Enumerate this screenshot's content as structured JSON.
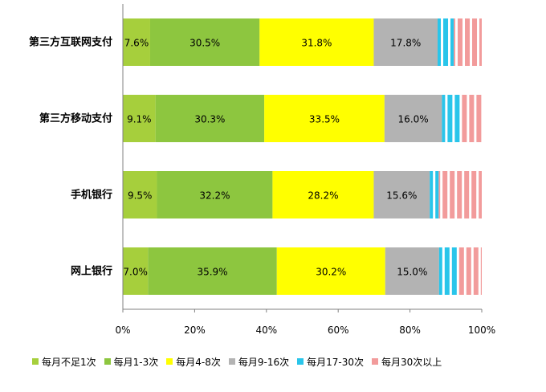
{
  "chart_data": {
    "type": "bar",
    "orientation": "horizontal",
    "stacked": true,
    "percent": true,
    "categories": [
      "第三方互联网支付",
      "第三方移动支付",
      "手机银行",
      "网上银行"
    ],
    "series": [
      {
        "name": "每月不足1次",
        "color": "#a6cf3c",
        "values": [
          7.6,
          9.1,
          9.5,
          7.0
        ]
      },
      {
        "name": "每月1-3次",
        "color": "#8dc63f",
        "values": [
          30.5,
          30.3,
          32.2,
          35.9
        ]
      },
      {
        "name": "每月4-8次",
        "color": "#ffff00",
        "values": [
          31.8,
          33.5,
          28.2,
          30.2
        ]
      },
      {
        "name": "每月9-16次",
        "color": "#b3b3b3",
        "values": [
          17.8,
          16.0,
          15.6,
          15.0
        ]
      },
      {
        "name": "每月17-30次",
        "color": "#29c5ea",
        "values": [
          4.5,
          5.0,
          2.5,
          5.5
        ]
      },
      {
        "name": "每月30次以上",
        "color": "#f29b9b",
        "values": [
          7.8,
          6.1,
          12.0,
          6.4
        ]
      }
    ],
    "value_labels": [
      [
        "7.6%",
        "30.5%",
        "31.8%",
        "17.8%",
        "",
        ""
      ],
      [
        "9.1%",
        "30.3%",
        "33.5%",
        "16.0%",
        "",
        ""
      ],
      [
        "9.5%",
        "32.2%",
        "28.2%",
        "15.6%",
        "",
        ""
      ],
      [
        "7.0%",
        "35.9%",
        "30.2%",
        "15.0%",
        "",
        ""
      ]
    ],
    "xlim": [
      0,
      100
    ],
    "xticks": [
      "0%",
      "20%",
      "40%",
      "60%",
      "80%",
      "100%"
    ],
    "grid": false,
    "legend_position": "bottom"
  }
}
